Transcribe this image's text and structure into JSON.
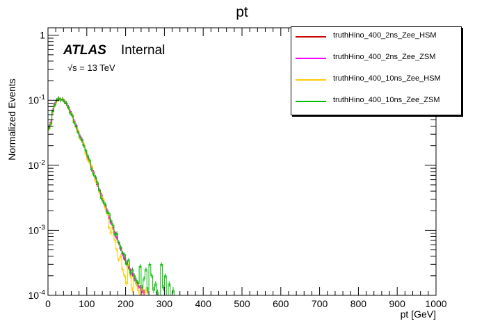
{
  "title": "pt",
  "atlas_label": "ATLAS",
  "internal_label": "Internal",
  "energy_label": "√s = 13 TeV",
  "legend": [
    {
      "label": "truthHino_400_2ns_Zee_HSM",
      "color": "#cc0000"
    },
    {
      "label": "truthHino_400_2ns_Zee_ZSM",
      "color": "#ff00ff"
    },
    {
      "label": "truthHino_400_10ns_Zee_HSM",
      "color": "#ffcc00"
    },
    {
      "label": "truthHino_400_10ns_Zee_ZSM",
      "color": "#00bb00"
    }
  ],
  "chart_data": {
    "type": "line",
    "title": "pt",
    "xlabel": "pt [GeV]",
    "ylabel": "Normalized Events",
    "xlim": [
      0,
      1000
    ],
    "ylim": [
      0.0001,
      1.3
    ],
    "yscale": "log",
    "x_ticks": [
      "0",
      "100",
      "200",
      "300",
      "400",
      "500",
      "600",
      "700",
      "800",
      "900",
      "1000"
    ],
    "y_ticks": [
      "10^-4",
      "10^-3",
      "10^-2",
      "10^-1",
      "1"
    ],
    "bin_width": 5,
    "x": [
      2.5,
      7.5,
      12.5,
      17.5,
      22.5,
      27.5,
      32.5,
      37.5,
      42.5,
      47.5,
      52.5,
      57.5,
      62.5,
      67.5,
      72.5,
      77.5,
      82.5,
      87.5,
      92.5,
      97.5,
      102.5,
      107.5,
      112.5,
      117.5,
      122.5,
      127.5,
      132.5,
      137.5,
      142.5,
      147.5,
      152.5,
      157.5,
      162.5,
      167.5,
      172.5,
      177.5,
      182.5,
      187.5,
      192.5,
      197.5,
      202.5,
      207.5,
      212.5,
      217.5,
      222.5,
      227.5,
      232.5,
      237.5,
      242.5,
      247.5,
      252.5,
      257.5,
      262.5,
      267.5,
      272.5,
      277.5,
      282.5,
      287.5,
      292.5,
      297.5,
      302.5,
      307.5,
      312.5,
      317.5,
      322.5,
      327.5,
      332.5,
      337.5,
      342.5,
      347.5
    ],
    "series": [
      {
        "name": "truthHino_400_2ns_Zee_HSM",
        "color": "#cc0000",
        "values": [
          0.038,
          0.045,
          0.068,
          0.085,
          0.098,
          0.104,
          0.102,
          0.103,
          0.096,
          0.088,
          0.078,
          0.066,
          0.058,
          0.047,
          0.04,
          0.033,
          0.027,
          0.025,
          0.02,
          0.016,
          0.013,
          0.011,
          0.0092,
          0.0078,
          0.0063,
          0.005,
          0.0042,
          0.0035,
          0.0029,
          0.0024,
          0.002,
          0.0016,
          0.0013,
          0.0011,
          0.00092,
          0.00076,
          0.00064,
          0.00052,
          0.00043,
          0.00036,
          0.00031,
          0.00027,
          0.00024,
          0.00021,
          0.00018,
          0.00016,
          0.00014,
          0.00013,
          0.00012,
          0.00011,
          0,
          0,
          0,
          0,
          0,
          0,
          0,
          0,
          0,
          0,
          0,
          0,
          0,
          0,
          0,
          0,
          0,
          0,
          0,
          0
        ]
      },
      {
        "name": "truthHino_400_2ns_Zee_ZSM",
        "color": "#ff00ff",
        "values": [
          0.039,
          0.046,
          0.07,
          0.087,
          0.1,
          0.105,
          0.103,
          0.104,
          0.097,
          0.089,
          0.079,
          0.067,
          0.058,
          0.048,
          0.041,
          0.033,
          0.028,
          0.025,
          0.02,
          0.016,
          0.013,
          0.011,
          0.0093,
          0.0078,
          0.0064,
          0.0051,
          0.0042,
          0.0035,
          0.0029,
          0.0024,
          0.002,
          0.0016,
          0.0013,
          0.0011,
          0.00092,
          0.00077,
          0.00065,
          0.00053,
          0.00044,
          0.00037,
          0.00032,
          0.00028,
          0.00024,
          0.00021,
          0.00018,
          0.00016,
          0.00014,
          0.00013,
          0.00012,
          0.00011,
          0,
          0,
          0,
          0,
          0,
          0,
          0,
          0,
          0,
          0,
          0,
          0,
          0,
          0,
          0,
          0,
          0,
          0,
          0,
          0
        ]
      },
      {
        "name": "truthHino_400_10ns_Zee_HSM",
        "color": "#ffcc00",
        "values": [
          0.036,
          0.044,
          0.066,
          0.083,
          0.096,
          0.106,
          0.101,
          0.105,
          0.095,
          0.091,
          0.076,
          0.064,
          0.06,
          0.046,
          0.038,
          0.034,
          0.026,
          0.024,
          0.021,
          0.015,
          0.012,
          0.011,
          0.0098,
          0.0074,
          0.0058,
          0.0052,
          0.0039,
          0.0033,
          0.003,
          0.0022,
          0.0018,
          0.0011,
          0.0009,
          0.0012,
          0.0007,
          0.0005,
          0.00035,
          0.0004,
          0.00025,
          0.0002,
          0.00015,
          0.0003,
          0.0002,
          0.00012,
          0.0002,
          0.00015,
          0.00012,
          0.0001,
          0.00013,
          0.0001,
          0.00012,
          0.0001,
          0.0001,
          0,
          0,
          0,
          0,
          0,
          0,
          0,
          0,
          0,
          0,
          0,
          0,
          0,
          0,
          0,
          0,
          0
        ]
      },
      {
        "name": "truthHino_400_10ns_Zee_ZSM",
        "color": "#00bb00",
        "values": [
          0.037,
          0.043,
          0.067,
          0.084,
          0.1,
          0.108,
          0.1,
          0.104,
          0.094,
          0.09,
          0.077,
          0.063,
          0.059,
          0.045,
          0.039,
          0.032,
          0.027,
          0.024,
          0.02,
          0.017,
          0.014,
          0.012,
          0.0085,
          0.0072,
          0.0066,
          0.0054,
          0.0041,
          0.0031,
          0.0027,
          0.0025,
          0.0019,
          0.0018,
          0.0014,
          0.0012,
          0.00085,
          0.0009,
          0.00065,
          0.00055,
          0.00045,
          0.00042,
          0.0003,
          0.00035,
          0.00022,
          0.00025,
          0.0002,
          0.00017,
          0.00015,
          0.00028,
          0.00013,
          0.00018,
          0.00025,
          0.00012,
          0.0003,
          0.0002,
          0.00012,
          0.00015,
          0.00011,
          0.0001,
          0.0003,
          0.00013,
          0.0002,
          0.0001,
          0.00015,
          0.0001,
          0.00012,
          0.0001,
          0.0001,
          0.0001,
          0.0001,
          0.0001
        ]
      }
    ]
  }
}
